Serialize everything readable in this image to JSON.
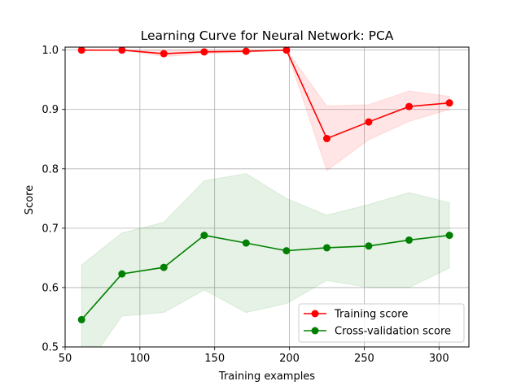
{
  "chart_data": {
    "type": "line",
    "title": "Learning Curve for Neural Network: PCA",
    "xlabel": "Training examples",
    "ylabel": "Score",
    "xlim": [
      50,
      320
    ],
    "ylim": [
      0.5,
      1.005
    ],
    "xticks": [
      50,
      100,
      150,
      200,
      250,
      300
    ],
    "xtick_labels": [
      "50",
      "100",
      "150",
      "200",
      "250",
      "300"
    ],
    "yticks": [
      0.5,
      0.6,
      0.7,
      0.8,
      0.9,
      1.0
    ],
    "ytick_labels": [
      "0.5",
      "0.6",
      "0.7",
      "0.8",
      "0.9",
      "1.0"
    ],
    "grid": true,
    "legend_position": "lower-right",
    "x": [
      61,
      88,
      116,
      143,
      171,
      198,
      225,
      253,
      280,
      307
    ],
    "series": [
      {
        "name": "Training score",
        "color": "#ff0000",
        "values": [
          1.0,
          1.0,
          0.994,
          0.997,
          0.998,
          1.0,
          0.851,
          0.879,
          0.905,
          0.911
        ],
        "band_upper": [
          1.0,
          1.0,
          1.0,
          1.0,
          1.0,
          1.0,
          0.906,
          0.908,
          0.931,
          0.922
        ],
        "band_lower": [
          1.0,
          1.0,
          0.989,
          0.994,
          0.996,
          1.0,
          0.797,
          0.849,
          0.88,
          0.9
        ],
        "band_color": "#ff0000"
      },
      {
        "name": "Cross-validation score",
        "color": "#008000",
        "values": [
          0.546,
          0.623,
          0.634,
          0.688,
          0.675,
          0.662,
          0.667,
          0.67,
          0.68,
          0.688
        ],
        "band_upper": [
          0.638,
          0.692,
          0.71,
          0.78,
          0.792,
          0.75,
          0.722,
          0.74,
          0.76,
          0.743
        ],
        "band_lower": [
          0.454,
          0.552,
          0.558,
          0.596,
          0.558,
          0.573,
          0.612,
          0.6,
          0.6,
          0.633
        ],
        "band_color": "#008000"
      }
    ]
  }
}
